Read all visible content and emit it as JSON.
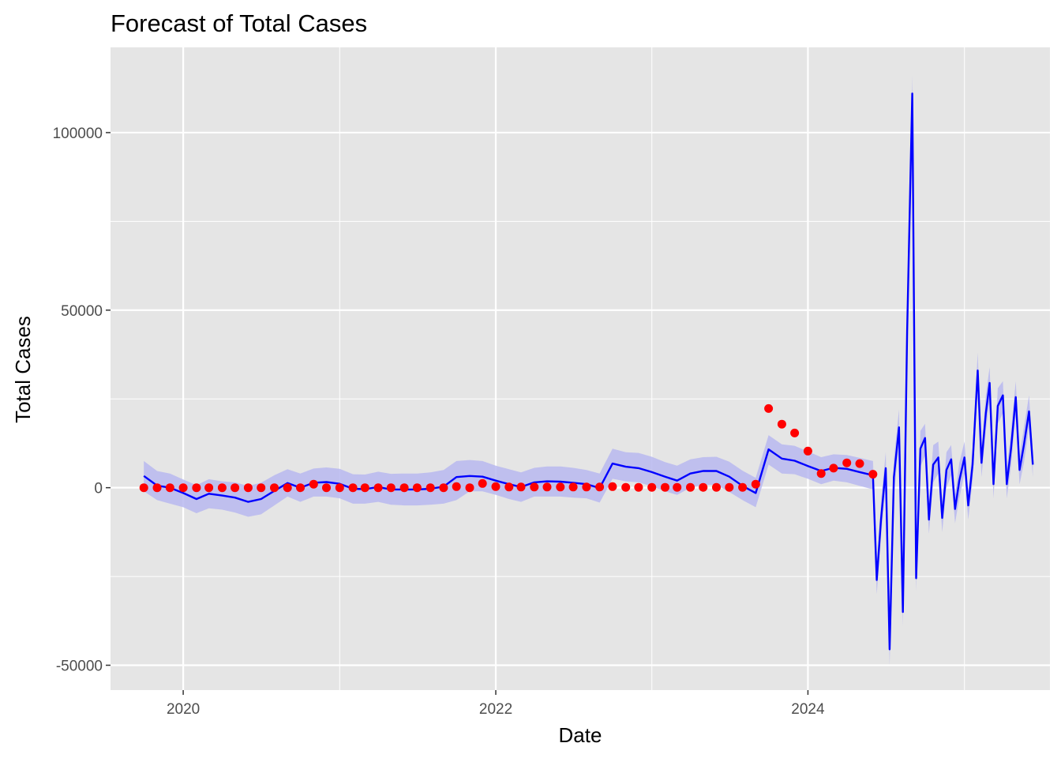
{
  "chart_data": {
    "type": "line",
    "title": "Forecast of Total Cases",
    "xlabel": "Date",
    "ylabel": "Total Cases",
    "x_ticks": [
      "2020",
      "2022",
      "2024"
    ],
    "y_ticks": [
      -50000,
      0,
      50000,
      100000
    ],
    "xlim": [
      "2019-07-15",
      "2025-07-20"
    ],
    "ylim": [
      -57000,
      124000
    ],
    "grid": true,
    "legend": "none",
    "colors": {
      "panel": "#e5e5e5",
      "grid": "#ffffff",
      "line": "#0000ff",
      "band": "#b8b8f0",
      "points": "#ff0000"
    },
    "series": [
      {
        "type": "ribbon",
        "x": [
          "2019-10-01",
          "2019-11-01",
          "2019-12-01",
          "2020-01-01",
          "2020-02-01",
          "2020-03-01",
          "2020-04-01",
          "2020-05-01",
          "2020-06-01",
          "2020-07-01",
          "2020-08-01",
          "2020-09-01",
          "2020-10-01",
          "2020-11-01",
          "2020-12-01",
          "2021-01-01",
          "2021-02-01",
          "2021-03-01",
          "2021-04-01",
          "2021-05-01",
          "2021-06-01",
          "2021-07-01",
          "2021-08-01",
          "2021-09-01",
          "2021-10-01",
          "2021-11-01",
          "2021-12-01",
          "2022-01-01",
          "2022-02-01",
          "2022-03-01",
          "2022-04-01",
          "2022-05-01",
          "2022-06-01",
          "2022-07-01",
          "2022-08-01",
          "2022-09-01",
          "2022-10-01",
          "2022-11-01",
          "2022-12-01",
          "2023-01-01",
          "2023-02-01",
          "2023-03-01",
          "2023-04-01",
          "2023-05-01",
          "2023-06-01",
          "2023-07-01",
          "2023-08-01",
          "2023-09-01",
          "2023-10-01",
          "2023-11-01",
          "2023-12-01",
          "2024-01-01",
          "2024-02-01",
          "2024-03-01",
          "2024-04-01",
          "2024-05-01",
          "2024-06-01"
        ],
        "lower": [
          -1000,
          -3500,
          -4500,
          -5500,
          -7200,
          -5800,
          -6200,
          -7000,
          -8200,
          -7500,
          -5000,
          -2500,
          -4000,
          -2500,
          -2500,
          -3000,
          -4500,
          -4500,
          -4000,
          -4800,
          -5000,
          -5000,
          -4800,
          -4500,
          -3500,
          -1000,
          -1000,
          -2000,
          -3200,
          -4000,
          -2500,
          -2500,
          -2500,
          -2800,
          -3000,
          -4200,
          2500,
          1800,
          1500,
          400,
          -1000,
          -2000,
          0,
          800,
          800,
          -1200,
          -3500,
          -5500,
          6500,
          4000,
          3800,
          2500,
          1000,
          2000,
          1500,
          500,
          -500
        ],
        "upper": [
          7500,
          4700,
          4000,
          2300,
          700,
          2400,
          1800,
          1500,
          500,
          1400,
          3500,
          5200,
          4000,
          5400,
          5700,
          5300,
          3800,
          3700,
          4500,
          3900,
          4000,
          4000,
          4300,
          5000,
          7500,
          7800,
          7500,
          6200,
          5200,
          4300,
          5600,
          6000,
          6000,
          5600,
          5000,
          4000,
          11000,
          10000,
          9800,
          8700,
          7200,
          6200,
          8000,
          8600,
          8700,
          7300,
          4800,
          2800,
          14800,
          12200,
          11800,
          10200,
          8600,
          9400,
          9200,
          8400,
          7500
        ]
      },
      {
        "type": "line",
        "x": [
          "2019-10-01",
          "2019-11-01",
          "2019-12-01",
          "2020-01-01",
          "2020-02-01",
          "2020-03-01",
          "2020-04-01",
          "2020-05-01",
          "2020-06-01",
          "2020-07-01",
          "2020-08-01",
          "2020-09-01",
          "2020-10-01",
          "2020-11-01",
          "2020-12-01",
          "2021-01-01",
          "2021-02-01",
          "2021-03-01",
          "2021-04-01",
          "2021-05-01",
          "2021-06-01",
          "2021-07-01",
          "2021-08-01",
          "2021-09-01",
          "2021-10-01",
          "2021-11-01",
          "2021-12-01",
          "2022-01-01",
          "2022-02-01",
          "2022-03-01",
          "2022-04-01",
          "2022-05-01",
          "2022-06-01",
          "2022-07-01",
          "2022-08-01",
          "2022-09-01",
          "2022-10-01",
          "2022-11-01",
          "2022-12-01",
          "2023-01-01",
          "2023-02-01",
          "2023-03-01",
          "2023-04-01",
          "2023-05-01",
          "2023-06-01",
          "2023-07-01",
          "2023-08-01",
          "2023-09-01",
          "2023-10-01",
          "2023-11-01",
          "2023-12-01",
          "2024-01-01",
          "2024-02-01",
          "2024-03-01",
          "2024-04-01",
          "2024-05-01",
          "2024-06-01"
        ],
        "y": [
          3300,
          600,
          0,
          -1500,
          -3200,
          -1700,
          -2200,
          -2800,
          -4000,
          -3200,
          -900,
          1300,
          0,
          1400,
          1600,
          1100,
          -300,
          -400,
          200,
          -500,
          -500,
          -500,
          -300,
          300,
          3000,
          3300,
          3100,
          2000,
          1000,
          200,
          1500,
          1800,
          1700,
          1400,
          1000,
          -100,
          6800,
          5900,
          5500,
          4400,
          3100,
          2000,
          4000,
          4700,
          4700,
          3100,
          500,
          -1500,
          10800,
          8200,
          7600,
          6100,
          4700,
          5600,
          5300,
          4400,
          3500
        ]
      },
      {
        "type": "points",
        "x": [
          "2019-10-01",
          "2019-11-01",
          "2019-12-01",
          "2020-01-01",
          "2020-02-01",
          "2020-03-01",
          "2020-04-01",
          "2020-05-01",
          "2020-06-01",
          "2020-07-01",
          "2020-08-01",
          "2020-09-01",
          "2020-10-01",
          "2020-11-01",
          "2020-12-01",
          "2021-01-01",
          "2021-02-01",
          "2021-03-01",
          "2021-04-01",
          "2021-05-01",
          "2021-06-01",
          "2021-07-01",
          "2021-08-01",
          "2021-09-01",
          "2021-10-01",
          "2021-11-01",
          "2021-12-01",
          "2022-01-01",
          "2022-02-01",
          "2022-03-01",
          "2022-04-01",
          "2022-05-01",
          "2022-06-01",
          "2022-07-01",
          "2022-08-01",
          "2022-09-01",
          "2022-10-01",
          "2022-11-01",
          "2022-12-01",
          "2023-01-01",
          "2023-02-01",
          "2023-03-01",
          "2023-04-01",
          "2023-05-01",
          "2023-06-01",
          "2023-07-01",
          "2023-08-01",
          "2023-09-01",
          "2023-10-01",
          "2023-11-01",
          "2023-12-01",
          "2024-01-01",
          "2024-02-01",
          "2024-03-01",
          "2024-04-01",
          "2024-05-01",
          "2024-06-01"
        ],
        "y": [
          0,
          0,
          0,
          0,
          0,
          0,
          0,
          0,
          0,
          0,
          0,
          0,
          0,
          1000,
          0,
          0,
          0,
          0,
          0,
          0,
          0,
          0,
          0,
          0,
          300,
          0,
          1200,
          300,
          200,
          200,
          200,
          200,
          200,
          200,
          200,
          200,
          300,
          100,
          100,
          100,
          100,
          100,
          100,
          100,
          100,
          100,
          100,
          1000,
          22300,
          17900,
          15400,
          10300,
          4000,
          5500,
          7000,
          6800,
          3800
        ]
      },
      {
        "type": "ribbon",
        "x": [
          "2024-06-01",
          "2024-06-10",
          "2024-06-20",
          "2024-07-01",
          "2024-07-10",
          "2024-07-20",
          "2024-08-01",
          "2024-08-10",
          "2024-08-20",
          "2024-09-01",
          "2024-09-10",
          "2024-09-20",
          "2024-10-01",
          "2024-10-10",
          "2024-10-20",
          "2024-11-01",
          "2024-11-10",
          "2024-11-20",
          "2024-12-01",
          "2024-12-10",
          "2024-12-20",
          "2025-01-01",
          "2025-01-10",
          "2025-01-20",
          "2025-02-01",
          "2025-02-10",
          "2025-02-20",
          "2025-03-01",
          "2025-03-10",
          "2025-03-20",
          "2025-04-01",
          "2025-04-10",
          "2025-04-20",
          "2025-05-01",
          "2025-05-10",
          "2025-05-20",
          "2025-06-01",
          "2025-06-10"
        ],
        "lower": [
          -1500,
          -30000,
          -14000,
          1000,
          -50000,
          -2000,
          12000,
          -39000,
          40000,
          106000,
          -29000,
          6000,
          9000,
          -13000,
          1500,
          4000,
          -12500,
          0,
          3500,
          -10000,
          -3000,
          4000,
          -9000,
          2000,
          28000,
          3000,
          16000,
          25000,
          -3000,
          18000,
          21000,
          -3000,
          6000,
          21000,
          1000,
          7000,
          17000,
          3000
        ],
        "upper": [
          8000,
          -22000,
          -4000,
          10000,
          -41000,
          8000,
          22000,
          -30000,
          48000,
          116000,
          -21000,
          16000,
          18000,
          -4500,
          12000,
          13000,
          -4500,
          10000,
          12000,
          -2000,
          7000,
          13000,
          -1000,
          11000,
          38000,
          11000,
          26000,
          34000,
          5000,
          28000,
          30000,
          5000,
          16000,
          30000,
          9000,
          17000,
          26000,
          10000
        ]
      },
      {
        "type": "line",
        "x": [
          "2024-06-01",
          "2024-06-10",
          "2024-06-20",
          "2024-07-01",
          "2024-07-10",
          "2024-07-20",
          "2024-08-01",
          "2024-08-10",
          "2024-08-20",
          "2024-09-01",
          "2024-09-10",
          "2024-09-20",
          "2024-10-01",
          "2024-10-10",
          "2024-10-20",
          "2024-11-01",
          "2024-11-10",
          "2024-11-20",
          "2024-12-01",
          "2024-12-10",
          "2024-12-20",
          "2025-01-01",
          "2025-01-10",
          "2025-01-20",
          "2025-02-01",
          "2025-02-10",
          "2025-02-20",
          "2025-03-01",
          "2025-03-10",
          "2025-03-20",
          "2025-04-01",
          "2025-04-10",
          "2025-04-20",
          "2025-05-01",
          "2025-05-10",
          "2025-05-20",
          "2025-06-01",
          "2025-06-10"
        ],
        "y": [
          3500,
          -26000,
          -9000,
          5500,
          -45500,
          3000,
          17000,
          -35000,
          44000,
          111000,
          -25500,
          11000,
          14000,
          -9000,
          6500,
          8500,
          -8500,
          5000,
          8000,
          -6000,
          2000,
          8500,
          -5000,
          6500,
          33000,
          7000,
          21000,
          29500,
          1000,
          23000,
          26000,
          1000,
          11000,
          25500,
          5000,
          12000,
          21500,
          6500
        ]
      }
    ]
  }
}
